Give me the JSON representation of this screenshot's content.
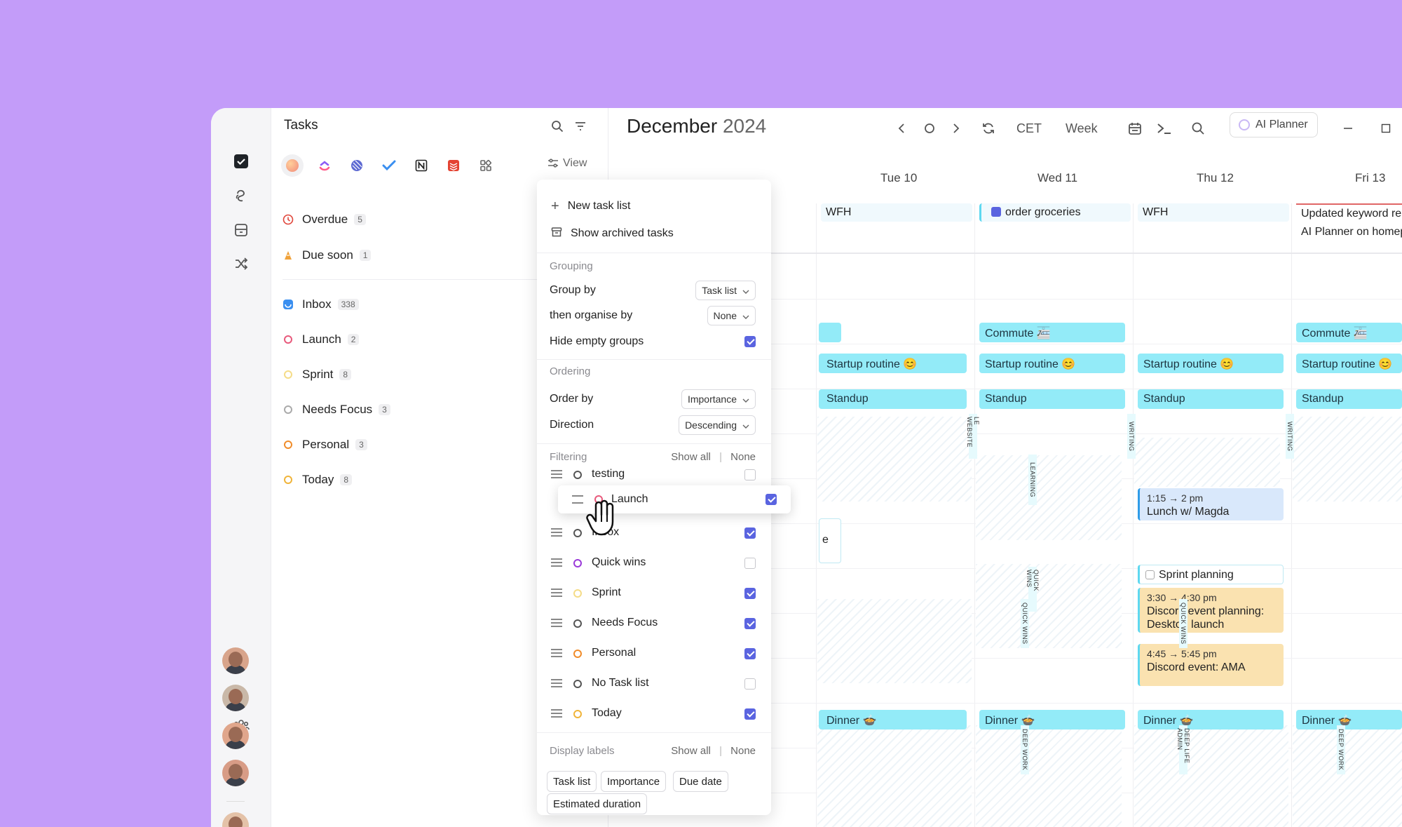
{
  "rail": {
    "icons": [
      "check-square-icon",
      "swirl-icon",
      "inbox-box-icon",
      "shuffle-icon",
      "people-icon"
    ]
  },
  "tasks": {
    "title": "Tasks",
    "view_label": "View",
    "lists": [
      {
        "name": "Overdue",
        "count": "5",
        "color": "#e0453a",
        "icon": "clock-icon"
      },
      {
        "name": "Due soon",
        "count": "1",
        "color": "#f0a23a",
        "icon": "hourglass-icon"
      },
      {
        "name": "Inbox",
        "count": "338",
        "color": "#3a8ff0",
        "icon": "inbox-icon"
      },
      {
        "name": "Launch",
        "count": "2",
        "color": "#e85a7c",
        "icon": "ring-icon"
      },
      {
        "name": "Sprint",
        "count": "8",
        "color": "#f5dc88",
        "icon": "ring-icon"
      },
      {
        "name": "Needs Focus",
        "count": "3",
        "color": "#aaaaaa",
        "icon": "ring-icon"
      },
      {
        "name": "Personal",
        "count": "3",
        "color": "#f08c2a",
        "icon": "ring-icon"
      },
      {
        "name": "Today",
        "count": "8",
        "color": "#f0b43a",
        "icon": "ring-icon"
      }
    ]
  },
  "calendar": {
    "month": "December",
    "year": "2024",
    "timezone": "CET",
    "view": "Week",
    "ai_planner": "AI Planner",
    "days": [
      {
        "label": "Tue 10"
      },
      {
        "label": "Wed 11"
      },
      {
        "label": "Thu 12"
      },
      {
        "label": "Fri 13"
      }
    ],
    "allday": {
      "tue": "WFH",
      "wed": "order groceries",
      "thu": "WFH",
      "fri1": "Updated keyword res",
      "fri2": "AI Planner on homep"
    },
    "events": {
      "commute": "Commute 🚈",
      "startup": "Startup routine 😊",
      "standup": "Standup",
      "dinner": "Dinner 🍲",
      "lunch_time": "1:15 → 2 pm",
      "lunch": "Lunch w/ Magda",
      "sprint_planning": "Sprint planning",
      "discord1_time": "3:30 → 4:30 pm",
      "discord1": "Discord event planning: Desktop launch",
      "discord2_time": "4:45 → 5:45 pm",
      "discord2": "Discord event: AMA",
      "partial": "e"
    },
    "labels": {
      "website": "LE WEBSITE",
      "writing": "WRITING",
      "learning": "LEARNING",
      "quick_wins": "QUICK WINS",
      "deep_work": "DEEP WORK",
      "life_admin": "DEEP LIFE ADMIN"
    }
  },
  "menu": {
    "new_task_list": "New task list",
    "show_archived": "Show archived tasks",
    "grouping": "Grouping",
    "group_by": "Group by",
    "group_by_value": "Task list",
    "then_organise": "then organise by",
    "then_organise_value": "None",
    "hide_empty": "Hide empty groups",
    "ordering": "Ordering",
    "order_by": "Order by",
    "order_by_value": "Importance",
    "direction": "Direction",
    "direction_value": "Descending",
    "filtering": "Filtering",
    "show_all": "Show all",
    "none": "None",
    "filters": [
      {
        "name": "testing",
        "color": "#555555",
        "checked": false
      },
      {
        "name": "Launch",
        "color": "#e85a7c",
        "checked": true
      },
      {
        "name": "Inbox",
        "color": "#555555",
        "checked": true
      },
      {
        "name": "Quick wins",
        "color": "#9a3ad8",
        "checked": false
      },
      {
        "name": "Sprint",
        "color": "#f5dc88",
        "checked": true
      },
      {
        "name": "Needs Focus",
        "color": "#555555",
        "checked": true
      },
      {
        "name": "Personal",
        "color": "#f08c2a",
        "checked": true
      },
      {
        "name": "No Task list",
        "color": "#555555",
        "checked": false
      },
      {
        "name": "Today",
        "color": "#f0b43a",
        "checked": true
      }
    ],
    "display_labels": "Display labels",
    "chips": [
      "Task list",
      "Importance",
      "Due date",
      "Estimated duration"
    ]
  }
}
